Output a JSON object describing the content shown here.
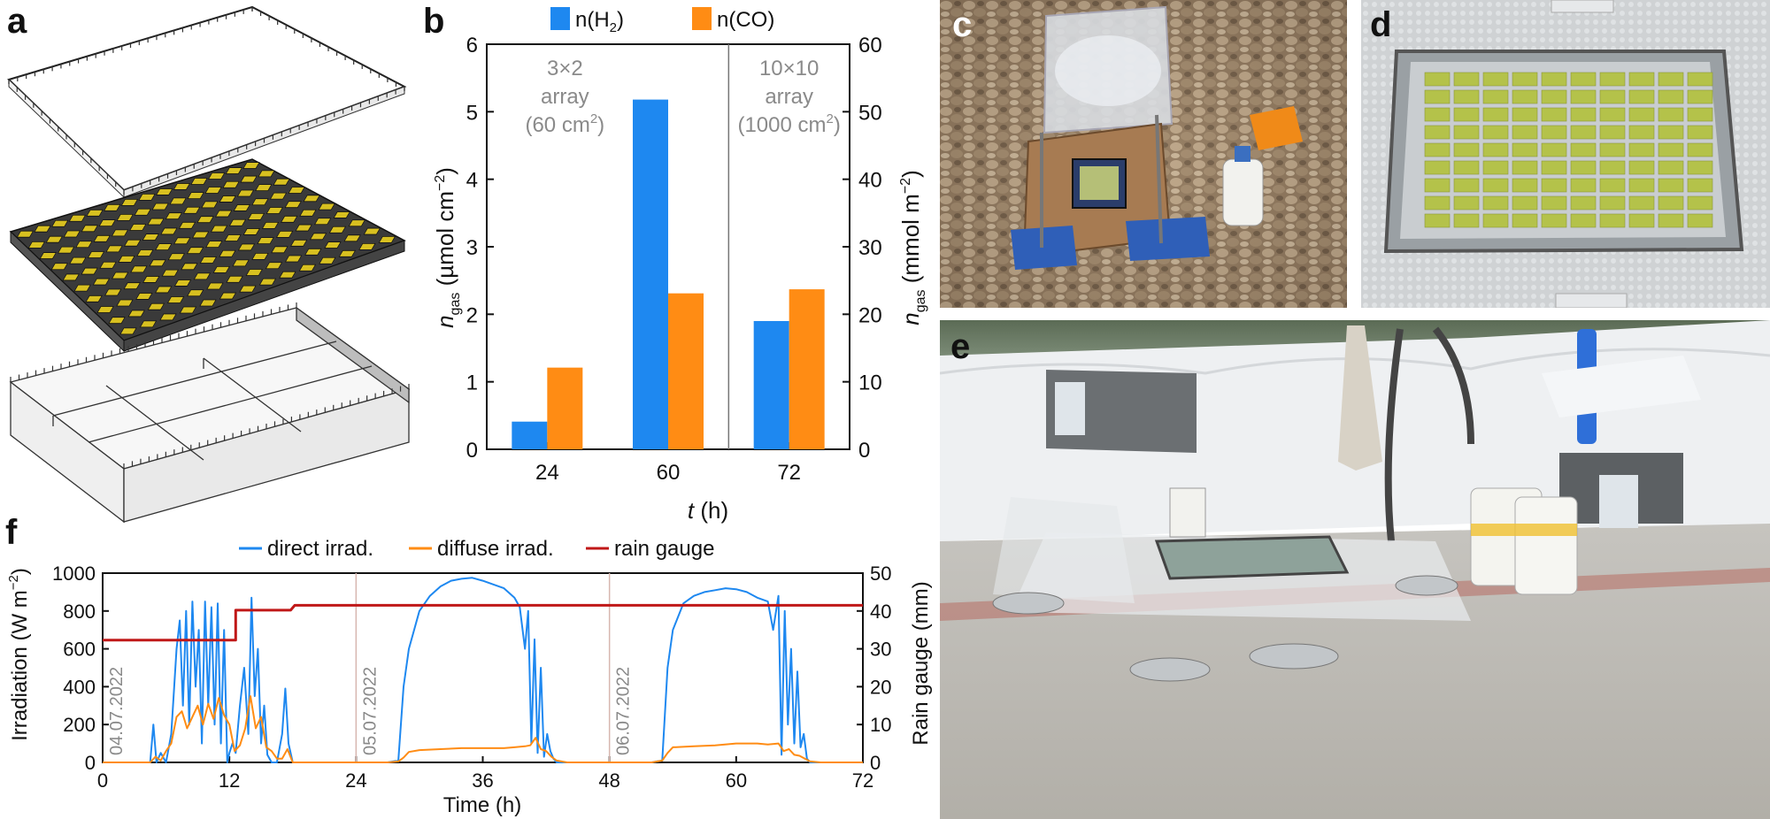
{
  "panels": {
    "a": {
      "letter": "a"
    },
    "b": {
      "letter": "b"
    },
    "c": {
      "letter": "c"
    },
    "d": {
      "letter": "d"
    },
    "e": {
      "letter": "e"
    },
    "f": {
      "letter": "f"
    }
  },
  "colors": {
    "h2": "#1e88f0",
    "co": "#ff8c14",
    "direct": "#1e88f0",
    "diffuse": "#ff8c14",
    "rain": "#c01818",
    "annotation_gray": "#8a8a8a"
  },
  "chart_data": [
    {
      "id": "b",
      "type": "bar",
      "categories": [
        "24",
        "60",
        "72"
      ],
      "series": [
        {
          "name": "n(H₂)",
          "values": [
            0.41,
            5.18,
            1.9
          ]
        },
        {
          "name": "n(CO)",
          "values": [
            1.21,
            2.31,
            2.37
          ]
        }
      ],
      "xlabel": "t (h)",
      "ylabel_left": "n_gas (µmol cm⁻²)",
      "ylabel_right": "n_gas (mmol m⁻²)",
      "ylim": [
        0,
        6
      ],
      "ylim_right": [
        0,
        60
      ],
      "yticks": [
        "0",
        "1",
        "2",
        "3",
        "4",
        "5",
        "6"
      ],
      "yticks_right": [
        "0",
        "10",
        "20",
        "30",
        "40",
        "50",
        "60"
      ],
      "legend_position": "top",
      "annotations": [
        {
          "lines": [
            "3×2",
            "array",
            "(60 cm²)"
          ]
        },
        {
          "lines": [
            "10×10",
            "array",
            "(1000 cm²)"
          ]
        }
      ]
    },
    {
      "id": "f",
      "type": "line",
      "xlabel": "Time (h)",
      "ylabel_left": "Irradiation (W m⁻²)",
      "ylabel_right": "Rain gauge (mm)",
      "xlim": [
        0,
        72
      ],
      "ylim": [
        0,
        1000
      ],
      "ylim_right": [
        0,
        50
      ],
      "xticks": [
        "0",
        "12",
        "24",
        "36",
        "48",
        "60",
        "72"
      ],
      "yticks": [
        "0",
        "200",
        "400",
        "600",
        "800",
        "1000"
      ],
      "yticks_right": [
        "0",
        "10",
        "20",
        "30",
        "40",
        "50"
      ],
      "legend_position": "top",
      "day_labels": [
        "04.07.2022",
        "05.07.2022",
        "06.07.2022"
      ],
      "series": [
        {
          "name": "direct irrad.",
          "x": [
            0,
            4.5,
            4.8,
            5.1,
            5.5,
            6,
            6.5,
            7,
            7.3,
            7.6,
            7.9,
            8.2,
            8.5,
            8.8,
            9.1,
            9.4,
            9.7,
            10,
            10.3,
            10.6,
            10.9,
            11.2,
            11.5,
            11.8,
            12,
            12.3,
            12.6,
            13,
            13.4,
            13.8,
            14.1,
            14.4,
            14.7,
            15,
            15.3,
            15.6,
            16,
            16.5,
            17,
            17.3,
            17.6,
            18,
            19,
            24,
            27,
            28,
            28.5,
            29,
            30,
            31,
            32,
            33,
            34,
            35,
            36,
            37,
            38,
            39,
            39.5,
            40,
            40.3,
            40.6,
            40.9,
            41.2,
            41.5,
            41.8,
            42.1,
            42.4,
            42.7,
            43,
            44,
            48,
            52,
            53,
            53.5,
            54,
            55,
            56,
            57,
            58,
            59,
            60,
            61,
            62,
            63,
            63.5,
            64,
            64.3,
            64.6,
            64.9,
            65.2,
            65.5,
            65.8,
            66.1,
            66.4,
            66.7,
            67,
            68,
            72
          ],
          "y": [
            0,
            0,
            200,
            0,
            50,
            0,
            150,
            600,
            750,
            300,
            800,
            200,
            850,
            400,
            700,
            100,
            850,
            300,
            820,
            200,
            840,
            100,
            700,
            0,
            50,
            100,
            50,
            300,
            500,
            150,
            870,
            350,
            600,
            100,
            300,
            40,
            0,
            0,
            150,
            390,
            100,
            0,
            0,
            0,
            0,
            10,
            400,
            600,
            800,
            880,
            930,
            960,
            970,
            975,
            960,
            940,
            920,
            870,
            820,
            600,
            800,
            100,
            650,
            50,
            500,
            30,
            150,
            60,
            20,
            0,
            0,
            0,
            0,
            10,
            500,
            700,
            840,
            880,
            900,
            910,
            920,
            915,
            900,
            870,
            850,
            700,
            880,
            40,
            800,
            200,
            600,
            100,
            480,
            80,
            150,
            20,
            0,
            0,
            0
          ]
        },
        {
          "name": "diffuse irrad.",
          "x": [
            0,
            4.5,
            5,
            5.5,
            6,
            6.5,
            7,
            7.5,
            8,
            8.5,
            9,
            9.5,
            10,
            10.5,
            11,
            11.5,
            12,
            12.5,
            13,
            13.5,
            14,
            14.5,
            15,
            15.5,
            16,
            16.5,
            17,
            17.5,
            18,
            19,
            24,
            27,
            28,
            28.5,
            29,
            30,
            32,
            34,
            36,
            38,
            39,
            40,
            40.5,
            41,
            41.5,
            42,
            42.5,
            43,
            44,
            48,
            52,
            53,
            53.5,
            54,
            56,
            58,
            60,
            62,
            63,
            64,
            64.5,
            65,
            65.5,
            66,
            66.5,
            67,
            68,
            72
          ],
          "y": [
            0,
            0,
            30,
            10,
            60,
            100,
            240,
            270,
            180,
            240,
            300,
            200,
            310,
            230,
            340,
            250,
            200,
            60,
            90,
            180,
            350,
            180,
            240,
            80,
            60,
            20,
            20,
            70,
            0,
            0,
            0,
            0,
            5,
            25,
            55,
            65,
            70,
            75,
            75,
            75,
            80,
            85,
            90,
            130,
            70,
            60,
            30,
            10,
            0,
            0,
            0,
            10,
            50,
            80,
            85,
            90,
            100,
            100,
            95,
            100,
            60,
            70,
            40,
            35,
            20,
            5,
            0,
            0
          ]
        },
        {
          "name": "rain gauge",
          "axis": "right",
          "x": [
            0,
            12,
            12.6,
            12.6,
            17.8,
            18.2,
            72
          ],
          "y": [
            32.3,
            32.3,
            32.3,
            40.2,
            40.2,
            41.5,
            41.5
          ]
        }
      ]
    }
  ]
}
